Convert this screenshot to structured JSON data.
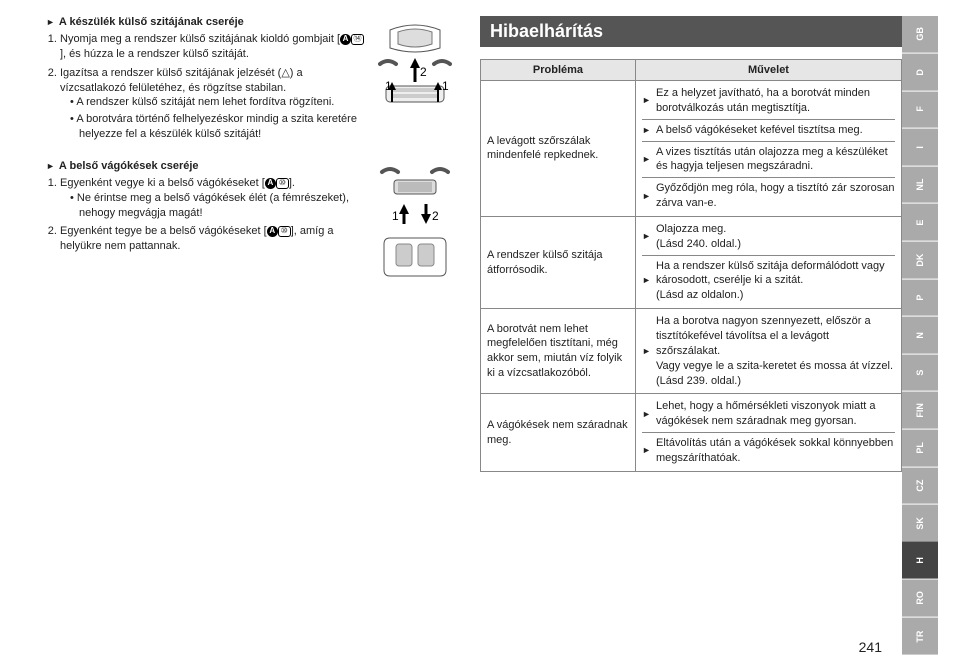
{
  "left": {
    "section1": {
      "title": "A készülék külső szitájának cseréje",
      "step1a": "Nyomja meg a rendszer külső szitájának kioldó gombjait [",
      "step1b": "], és húzza le a rendszer külső szitáját.",
      "step2": "Igazítsa a rendszer külső szitájának jelzését (△) a vízcsatlakozó felületéhez, és rögzítse stabilan.",
      "bullet1": "A rendszer külső szitáját nem lehet fordítva rögzíteni.",
      "bullet2": "A borotvára történő felhelyezéskor mindig a szita keretére helyezze fel a készülék külső szitáját!"
    },
    "section2": {
      "title": "A belső vágókések cseréje",
      "step1a": "Egyenként vegye ki a belső vágókéseket [",
      "step1b": "].",
      "bullet1": "Ne érintse meg a belső vágókések élét (a fémrészeket), nehogy megvágja magát!",
      "step2a": "Egyenként tegye be a belső vágókéseket [",
      "step2b": "], amíg a helyükre nem pattannak."
    },
    "refA": "A",
    "ref14": "⑭",
    "ref10": "⑩"
  },
  "right": {
    "title": "Hibaelhárítás",
    "th1": "Probléma",
    "th2": "Művelet",
    "rows": [
      {
        "problem": "A levágott szőrszálak mindenfelé repkednek.",
        "actions": [
          "Ez a helyzet javítható, ha a borotvát minden borotválkozás után megtisztítja.",
          "A belső vágókéseket kefével tisztítsa meg.",
          "A vizes tisztítás után olajozza meg a készüléket és hagyja teljesen megszáradni.",
          "Győződjön meg róla, hogy a tisztító zár szorosan zárva van-e."
        ]
      },
      {
        "problem": "A rendszer külső szitája átforrósodik.",
        "actions": [
          "Olajozza meg.\n(Lásd 240. oldal.)",
          "Ha a rendszer külső szitája deformálódott vagy károsodott, cserélje ki a szitát.\n(Lásd az oldalon.)"
        ]
      },
      {
        "problem": "A borotvát nem lehet megfelelően tisztítani, még akkor sem, miután víz folyik ki a vízcsatlakozóból.",
        "actions": [
          "Ha a borotva nagyon szennyezett, először a tisztítókefével távolítsa el a levágott szőrszálakat.\nVagy vegye le a szita-keretet és mossa át vízzel.\n(Lásd 239. oldal.)"
        ]
      },
      {
        "problem": "A vágókések nem száradnak meg.",
        "actions": [
          "Lehet, hogy a hőmérsékleti viszonyok miatt a vágókések nem száradnak meg gyorsan.",
          "Eltávolítás után a vágókések sokkal könnyebben megszáríthatóak."
        ]
      }
    ]
  },
  "tabs": [
    "GB",
    "D",
    "F",
    "I",
    "NL",
    "E",
    "DK",
    "P",
    "N",
    "S",
    "FIN",
    "PL",
    "CZ",
    "SK",
    "H",
    "RO",
    "TR"
  ],
  "activeTab": "H",
  "pageNum": "241",
  "svg1": {
    "n1": "1",
    "n2": "2"
  },
  "svg2": {
    "n1": "1",
    "n2": "2"
  }
}
